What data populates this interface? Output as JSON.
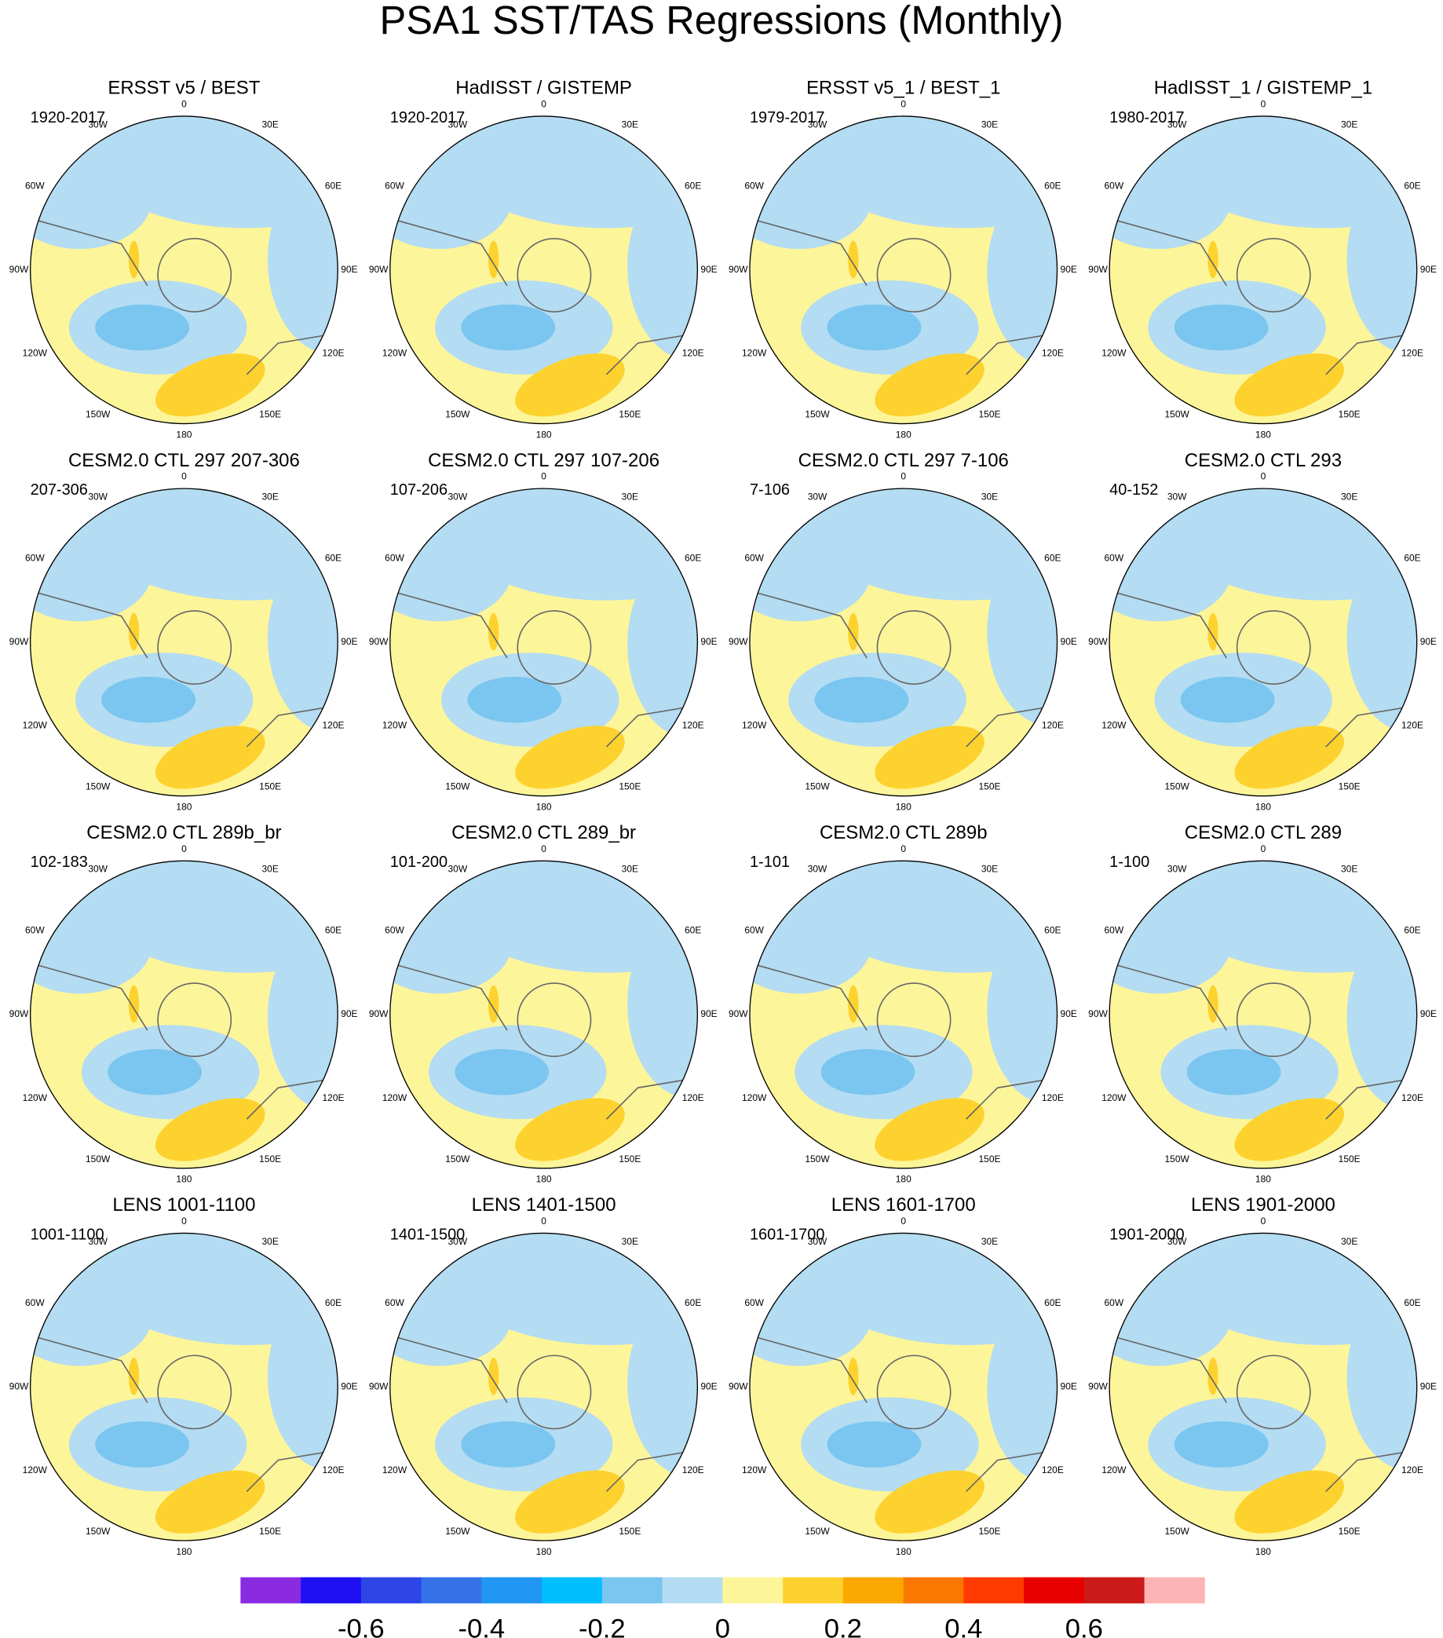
{
  "title": "PSA1 SST/TAS Regressions (Monthly)",
  "lon_labels": [
    "0",
    "30E",
    "60E",
    "90E",
    "120E",
    "150E",
    "180",
    "150W",
    "120W",
    "90W",
    "60W",
    "30W"
  ],
  "panels": [
    {
      "title": "ERSST v5 / BEST",
      "period": "1920-2017"
    },
    {
      "title": "HadISST / GISTEMP",
      "period": "1920-2017"
    },
    {
      "title": "ERSST v5_1 / BEST_1",
      "period": "1979-2017"
    },
    {
      "title": "HadISST_1 / GISTEMP_1",
      "period": "1980-2017"
    },
    {
      "title": "CESM2.0 CTL 297 207-306",
      "period": "207-306"
    },
    {
      "title": "CESM2.0 CTL 297 107-206",
      "period": "107-206"
    },
    {
      "title": "CESM2.0 CTL 297 7-106",
      "period": "7-106"
    },
    {
      "title": "CESM2.0 CTL 293",
      "period": "40-152"
    },
    {
      "title": "CESM2.0 CTL 289b_br",
      "period": "102-183"
    },
    {
      "title": "CESM2.0 CTL 289_br",
      "period": "101-200"
    },
    {
      "title": "CESM2.0 CTL 289b",
      "period": "1-101"
    },
    {
      "title": "CESM2.0 CTL 289",
      "period": "1-100"
    },
    {
      "title": "LENS 1001-1100",
      "period": "1001-1100"
    },
    {
      "title": "LENS 1401-1500",
      "period": "1401-1500"
    },
    {
      "title": "LENS 1601-1700",
      "period": "1601-1700"
    },
    {
      "title": "LENS 1901-2000",
      "period": "1901-2000"
    }
  ],
  "colorbar": {
    "colors": [
      "#8a2be2",
      "#1e10f2",
      "#2e45e8",
      "#3572e8",
      "#2196f3",
      "#00bfff",
      "#7ac6f0",
      "#b4dcf2",
      "#fdf59a",
      "#fdd22e",
      "#faa800",
      "#fa7700",
      "#fe3a00",
      "#e80000",
      "#cc1a1a",
      "#fdb4b4"
    ],
    "xlim": [
      -0.8,
      0.8
    ],
    "xticks": [
      -0.6,
      -0.4,
      -0.2,
      0,
      0.2,
      0.4,
      0.6
    ]
  }
}
